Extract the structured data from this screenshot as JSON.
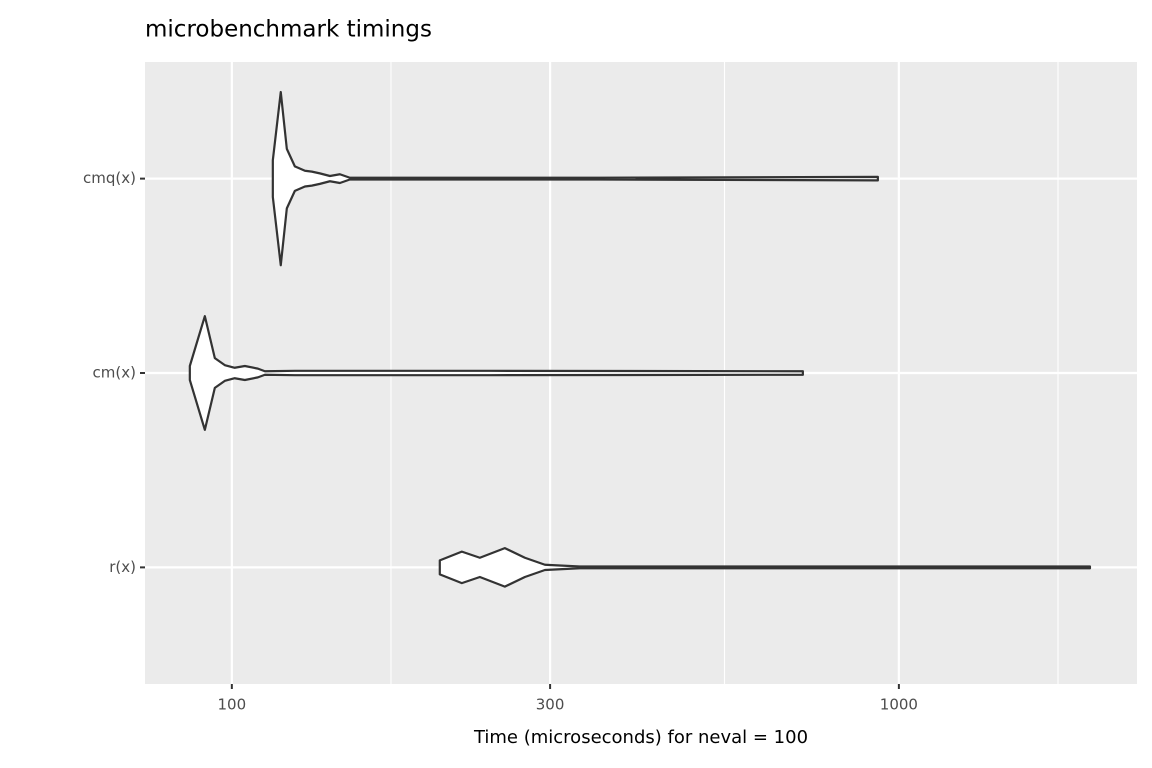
{
  "chart_data": {
    "type": "violin",
    "title": "microbenchmark timings",
    "x_label": "Time (microseconds) for neval = 100",
    "log_x": true,
    "xlim": [
      74.1,
      2275
    ],
    "xticks": [
      100,
      300,
      1000
    ],
    "minor_xticks": [
      173.2,
      547.7,
      1732
    ],
    "grid": true,
    "fill": "#ffffff",
    "stroke": "#333333",
    "categories": [
      "cmq(x)",
      "cm(x)",
      "r(x)"
    ],
    "violins": [
      {
        "values": [
          115.2,
          118.4,
          120.9,
          124.3,
          128.7,
          131.8,
          135.5,
          140.3,
          145.2,
          150.3,
          178.6,
          356.2,
          930
        ],
        "density": [
          0.21,
          0.99,
          0.34,
          0.14,
          0.09,
          0.08,
          0.06,
          0.03,
          0.05,
          0.01,
          0.01,
          0.01,
          0.02
        ]
      },
      {
        "values": [
          86.5,
          91.1,
          94.3,
          97.6,
          101,
          104.6,
          109.4,
          112.1,
          124.3,
          142.7,
          243.7,
          717.9
        ],
        "density": [
          0.08,
          0.65,
          0.17,
          0.09,
          0.06,
          0.08,
          0.05,
          0.02,
          0.025,
          0.025,
          0.025,
          0.02
        ]
      },
      {
        "values": [
          205,
          221.2,
          235.4,
          256.6,
          275,
          294.7,
          332.4,
          381.6,
          1934
        ],
        "density": [
          0.08,
          0.18,
          0.11,
          0.22,
          0.11,
          0.03,
          0.01,
          0.01,
          0.01
        ]
      }
    ]
  }
}
